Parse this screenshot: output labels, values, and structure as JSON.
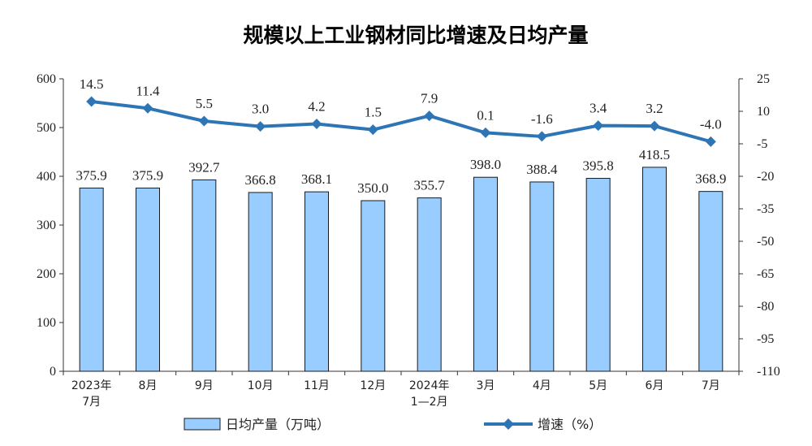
{
  "chart_data": {
    "type": "bar",
    "title": "规模以上工业钢材同比增速及日均产量",
    "categories": [
      [
        "2023年",
        "7月"
      ],
      [
        "8月"
      ],
      [
        "9月"
      ],
      [
        "10月"
      ],
      [
        "11月"
      ],
      [
        "12月"
      ],
      [
        "2024年",
        "1—2月"
      ],
      [
        "3月"
      ],
      [
        "4月"
      ],
      [
        "5月"
      ],
      [
        "6月"
      ],
      [
        "7月"
      ]
    ],
    "series": [
      {
        "name": "日均产量（万吨）",
        "type": "bar",
        "axis": "left",
        "values": [
          375.9,
          375.9,
          392.7,
          366.8,
          368.1,
          350.0,
          355.7,
          398.0,
          388.4,
          395.8,
          418.5,
          368.9
        ],
        "labels": [
          "375.9",
          "375.9",
          "392.7",
          "366.8",
          "368.1",
          "350.0",
          "355.7",
          "398.0",
          "388.4",
          "395.8",
          "418.5",
          "368.9"
        ]
      },
      {
        "name": "增速（%）",
        "type": "line",
        "axis": "right",
        "values": [
          14.5,
          11.4,
          5.5,
          3.0,
          4.2,
          1.5,
          7.9,
          0.1,
          -1.6,
          3.4,
          3.2,
          -4.0
        ],
        "labels": [
          "14.5",
          "11.4",
          "5.5",
          "3.0",
          "4.2",
          "1.5",
          "7.9",
          "0.1",
          "-1.6",
          "3.4",
          "3.2",
          "-4.0"
        ]
      }
    ],
    "y_left": {
      "range": [
        0,
        600
      ],
      "ticks": [
        "0",
        "100",
        "200",
        "300",
        "400",
        "500",
        "600"
      ]
    },
    "y_right": {
      "range": [
        -110,
        25
      ],
      "ticks": [
        "-110",
        "-95",
        "-80",
        "-65",
        "-50",
        "-35",
        "-20",
        "-5",
        "10",
        "25"
      ]
    },
    "grid": false,
    "legend_position": "bottom",
    "colors": {
      "bar_fill": "#99CCFF",
      "bar_stroke": "#1a1a1a",
      "line": "#2E75B6",
      "axis": "#333333"
    }
  }
}
